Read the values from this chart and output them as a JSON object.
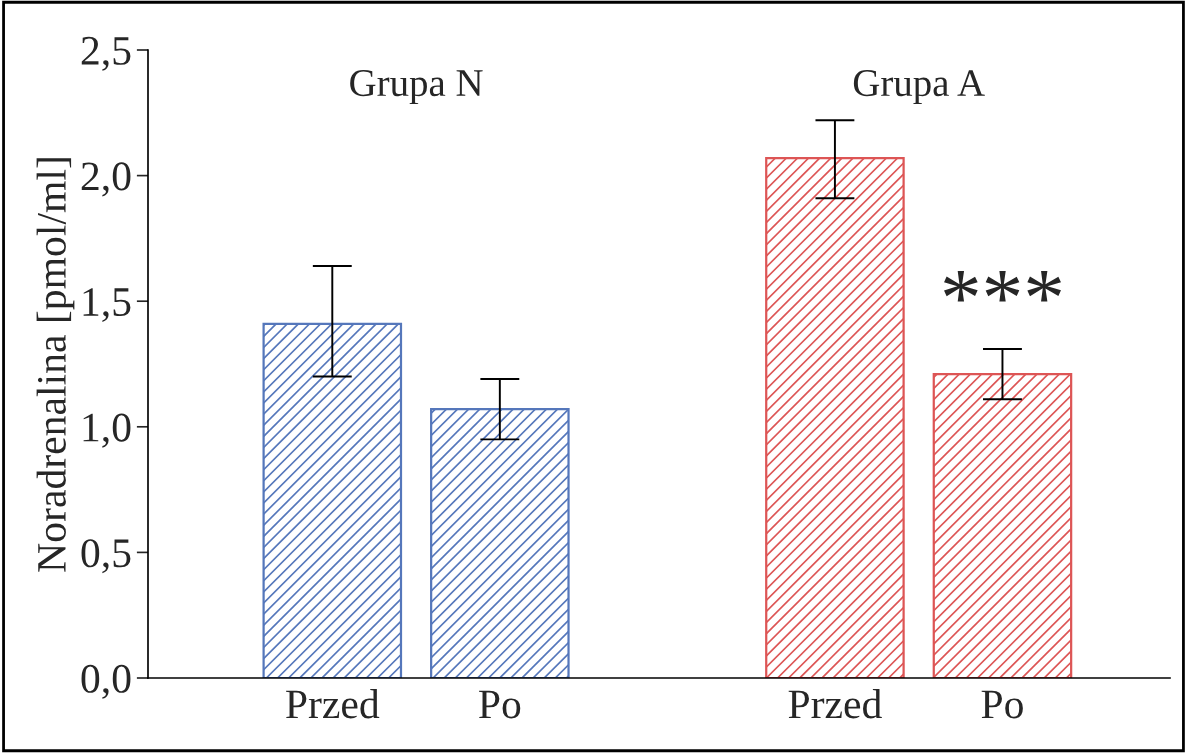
{
  "chart_data": {
    "type": "bar",
    "ylabel": "Noradrenalina [pmol/ml]",
    "categories": [
      "Przed",
      "Po",
      null,
      "Przed",
      "Po"
    ],
    "values": [
      1.41,
      1.07,
      null,
      2.07,
      1.21
    ],
    "colors": [
      "#5577bb",
      "#5577bb",
      null,
      "#dd5555",
      "#dd5555"
    ],
    "errors": [
      [
        1.2,
        1.64
      ],
      [
        0.95,
        1.19
      ],
      null,
      [
        1.91,
        2.22
      ],
      [
        1.11,
        1.31
      ]
    ],
    "ylim": [
      0,
      2.5
    ],
    "yticks": [
      {
        "value": 0,
        "label": "0,0"
      },
      {
        "value": 0.5,
        "label": "0,5"
      },
      {
        "value": 1.0,
        "label": "1,0"
      },
      {
        "value": 1.5,
        "label": "1,5"
      },
      {
        "value": 2.0,
        "label": "2,0"
      },
      {
        "value": 2.5,
        "label": "2,5"
      }
    ],
    "annotations": [
      {
        "text": "Grupa N"
      },
      {
        "text": "Grupa A"
      },
      "***"
    ],
    "grid": false,
    "legend": false
  }
}
